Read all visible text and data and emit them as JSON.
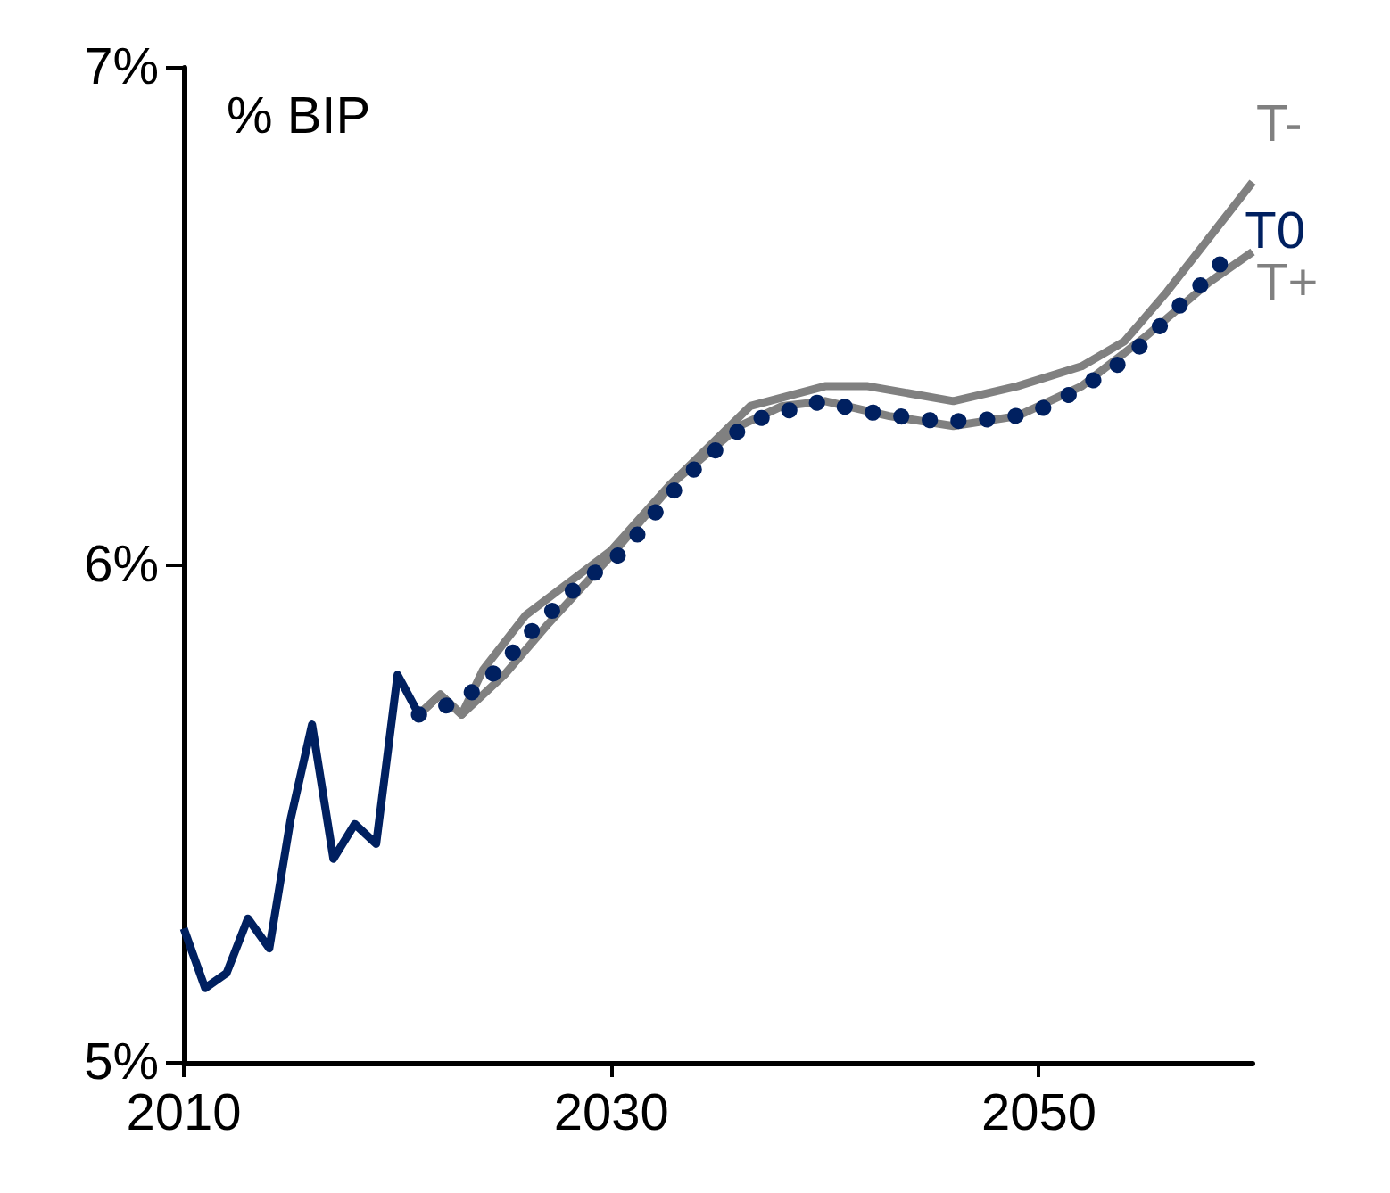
{
  "chart_data": {
    "type": "line",
    "ylabel": "% BIP",
    "xlim": [
      2010,
      2060
    ],
    "xticks": [
      2010,
      2030,
      2050
    ],
    "ylim": [
      5,
      7
    ],
    "yticks": [
      {
        "value": 5,
        "label": "5%"
      },
      {
        "value": 6,
        "label": "6%"
      },
      {
        "value": 7,
        "label": "7%"
      }
    ],
    "grid": false,
    "legend": false,
    "marker": "none",
    "series": [
      {
        "color": "#002060",
        "line_style": "solid",
        "x": [
          2010,
          2011,
          2012,
          2013,
          2014,
          2015,
          2016,
          2017,
          2018,
          2019,
          2020,
          2021
        ],
        "values": [
          5.27,
          5.15,
          5.18,
          5.29,
          5.23,
          5.49,
          5.68,
          5.41,
          5.48,
          5.44,
          5.78,
          5.7
        ]
      },
      {
        "name": "T-",
        "color": "#808080",
        "line_style": "solid",
        "x": [
          2021,
          2022,
          2023,
          2024,
          2026,
          2030,
          2032.7,
          2036.5,
          2040,
          2042,
          2046,
          2049,
          2052,
          2054,
          2056,
          2060
        ],
        "values": [
          5.7,
          5.74,
          5.7,
          5.79,
          5.9,
          6.03,
          6.16,
          6.32,
          6.36,
          6.36,
          6.33,
          6.36,
          6.4,
          6.45,
          6.55,
          6.77
        ]
      },
      {
        "name": "T+",
        "color": "#808080",
        "line_style": "solid",
        "x": [
          2021,
          2022,
          2023,
          2025,
          2027,
          2030,
          2033,
          2036,
          2038,
          2040,
          2043,
          2046,
          2049,
          2052,
          2055,
          2058,
          2060
        ],
        "values": [
          5.7,
          5.74,
          5.7,
          5.78,
          5.88,
          6.02,
          6.17,
          6.28,
          6.32,
          6.33,
          6.3,
          6.28,
          6.3,
          6.36,
          6.46,
          6.57,
          6.63
        ]
      },
      {
        "name": "T0",
        "color": "#002060",
        "line_style": "dotted",
        "x": [
          2021,
          2022.4,
          2023.7,
          2024.9,
          2026.1,
          2027.5,
          2028.7,
          2030.1,
          2031.4,
          2032.5,
          2033.8,
          2035.1,
          2036.5,
          2038.2,
          2039.9,
          2041.7,
          2043.4,
          2045.2,
          2047,
          2048.9,
          2050.5,
          2052.1,
          2053.6,
          2055,
          2056.3,
          2057.5,
          2058.8
        ],
        "values": [
          5.7,
          5.72,
          5.75,
          5.8,
          5.86,
          5.92,
          5.97,
          6.01,
          6.07,
          6.13,
          6.19,
          6.24,
          6.29,
          6.31,
          6.33,
          6.31,
          6.3,
          6.29,
          6.29,
          6.3,
          6.32,
          6.36,
          6.4,
          6.45,
          6.51,
          6.56,
          6.62
        ]
      }
    ]
  }
}
